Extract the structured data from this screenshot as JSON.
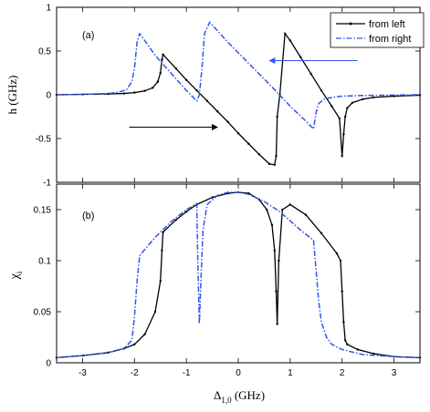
{
  "chart_data": [
    {
      "type": "line",
      "panel_label": "(a)",
      "xlabel": "",
      "ylabel": "h (GHz)",
      "xlim": [
        -3.5,
        3.5
      ],
      "ylim": [
        -1,
        1
      ],
      "xticks": [
        -3,
        -2,
        -1,
        0,
        1,
        2,
        3
      ],
      "xtick_labels": [
        "",
        "",
        "",
        "",
        "",
        "",
        ""
      ],
      "yticks": [
        -1,
        -0.5,
        0,
        0.5,
        1
      ],
      "ytick_labels": [
        "-1",
        "-0.5",
        "0",
        "0.5",
        "1"
      ],
      "legend_position": "top-right",
      "grid": false,
      "series": [
        {
          "name": "from left",
          "color": "#000000",
          "style": "solid-with-dot-markers",
          "x": [
            -3.5,
            -3.0,
            -2.5,
            -2.2,
            -2.0,
            -1.8,
            -1.65,
            -1.55,
            -1.5,
            -1.47,
            -1.45,
            -1.2,
            -1.0,
            -0.8,
            -0.6,
            -0.4,
            -0.2,
            0.0,
            0.2,
            0.4,
            0.6,
            0.7,
            0.73,
            0.75,
            0.8,
            0.9,
            1.0,
            1.2,
            1.4,
            1.6,
            1.8,
            1.95,
            2.0,
            2.03,
            2.06,
            2.1,
            2.2,
            2.4,
            2.6,
            3.0,
            3.5
          ],
          "y": [
            0.0,
            0.005,
            0.01,
            0.015,
            0.025,
            0.045,
            0.08,
            0.15,
            0.25,
            0.4,
            0.46,
            0.3,
            0.17,
            0.05,
            -0.07,
            -0.19,
            -0.31,
            -0.44,
            -0.56,
            -0.68,
            -0.79,
            -0.8,
            -0.7,
            -0.25,
            0.0,
            0.7,
            0.62,
            0.43,
            0.24,
            0.05,
            -0.13,
            -0.27,
            -0.7,
            -0.45,
            -0.25,
            -0.15,
            -0.09,
            -0.05,
            -0.03,
            -0.015,
            -0.005
          ]
        },
        {
          "name": "from right",
          "color": "#3355ee",
          "style": "dash-dot",
          "x": [
            -3.5,
            -3.0,
            -2.5,
            -2.3,
            -2.15,
            -2.05,
            -2.0,
            -1.95,
            -1.9,
            -1.6,
            -1.3,
            -1.0,
            -0.8,
            -0.75,
            -0.7,
            -0.65,
            -0.55,
            -0.2,
            0.2,
            0.6,
            1.0,
            1.3,
            1.45,
            1.5,
            1.55,
            1.65,
            1.8,
            2.0,
            2.4,
            3.0,
            3.5
          ],
          "y": [
            0.0,
            0.005,
            0.015,
            0.03,
            0.06,
            0.15,
            0.3,
            0.6,
            0.7,
            0.45,
            0.25,
            0.05,
            -0.07,
            0.0,
            0.3,
            0.7,
            0.83,
            0.6,
            0.36,
            0.12,
            -0.13,
            -0.3,
            -0.39,
            -0.2,
            -0.1,
            -0.05,
            -0.03,
            -0.015,
            -0.008,
            -0.003,
            0.0
          ]
        }
      ],
      "annotations": [
        {
          "type": "arrow",
          "direction": "right",
          "color": "#000000",
          "from": [
            -2.1,
            -0.37
          ],
          "to": [
            -0.4,
            -0.37
          ]
        },
        {
          "type": "arrow",
          "direction": "left",
          "color": "#3355ee",
          "from": [
            2.3,
            0.39
          ],
          "to": [
            0.6,
            0.39
          ]
        }
      ]
    },
    {
      "type": "line",
      "panel_label": "(b)",
      "xlabel": "Δ1,0 (GHz)",
      "xlabel_main": "Δ",
      "xlabel_sub": "1,0",
      "xlabel_unit": " (GHz)",
      "ylabel": "χi",
      "ylabel_main": "χ",
      "ylabel_sub": "i",
      "xlim": [
        -3.5,
        3.5
      ],
      "ylim": [
        0,
        0.175
      ],
      "xticks": [
        -3,
        -2,
        -1,
        0,
        1,
        2,
        3
      ],
      "xtick_labels": [
        "-3",
        "-2",
        "-1",
        "0",
        "1",
        "2",
        "3"
      ],
      "yticks": [
        0,
        0.05,
        0.1,
        0.15
      ],
      "ytick_labels": [
        "0",
        "0.05",
        "0.1",
        "0.15"
      ],
      "grid": false,
      "series": [
        {
          "name": "from left",
          "color": "#000000",
          "style": "solid-with-dot-markers",
          "x": [
            -3.5,
            -3.0,
            -2.5,
            -2.2,
            -2.0,
            -1.8,
            -1.6,
            -1.5,
            -1.47,
            -1.45,
            -1.2,
            -1.0,
            -0.8,
            -0.5,
            -0.2,
            0.0,
            0.2,
            0.4,
            0.55,
            0.65,
            0.7,
            0.73,
            0.75,
            0.78,
            0.85,
            1.0,
            1.3,
            1.6,
            1.9,
            1.97,
            2.0,
            2.03,
            2.06,
            2.1,
            2.3,
            2.6,
            3.0,
            3.5
          ],
          "y": [
            0.005,
            0.007,
            0.01,
            0.014,
            0.018,
            0.028,
            0.05,
            0.08,
            0.11,
            0.128,
            0.14,
            0.148,
            0.155,
            0.162,
            0.166,
            0.167,
            0.166,
            0.16,
            0.15,
            0.135,
            0.11,
            0.07,
            0.038,
            0.1,
            0.15,
            0.155,
            0.145,
            0.127,
            0.107,
            0.1,
            0.07,
            0.04,
            0.022,
            0.018,
            0.013,
            0.009,
            0.006,
            0.005
          ]
        },
        {
          "name": "from right",
          "color": "#3355ee",
          "style": "dash-dot",
          "x": [
            -3.5,
            -3.0,
            -2.5,
            -2.2,
            -2.05,
            -2.0,
            -1.95,
            -1.9,
            -1.6,
            -1.3,
            -1.0,
            -0.8,
            -0.78,
            -0.75,
            -0.72,
            -0.68,
            -0.6,
            -0.4,
            -0.2,
            0.0,
            0.2,
            0.5,
            0.8,
            1.2,
            1.45,
            1.5,
            1.55,
            1.6,
            1.7,
            1.8,
            2.0,
            2.4,
            3.0,
            3.5
          ],
          "y": [
            0.005,
            0.007,
            0.01,
            0.014,
            0.022,
            0.045,
            0.08,
            0.105,
            0.123,
            0.138,
            0.15,
            0.156,
            0.1,
            0.038,
            0.08,
            0.13,
            0.155,
            0.164,
            0.167,
            0.167,
            0.165,
            0.158,
            0.148,
            0.13,
            0.12,
            0.09,
            0.06,
            0.04,
            0.025,
            0.018,
            0.013,
            0.008,
            0.006,
            0.005
          ]
        }
      ]
    }
  ]
}
